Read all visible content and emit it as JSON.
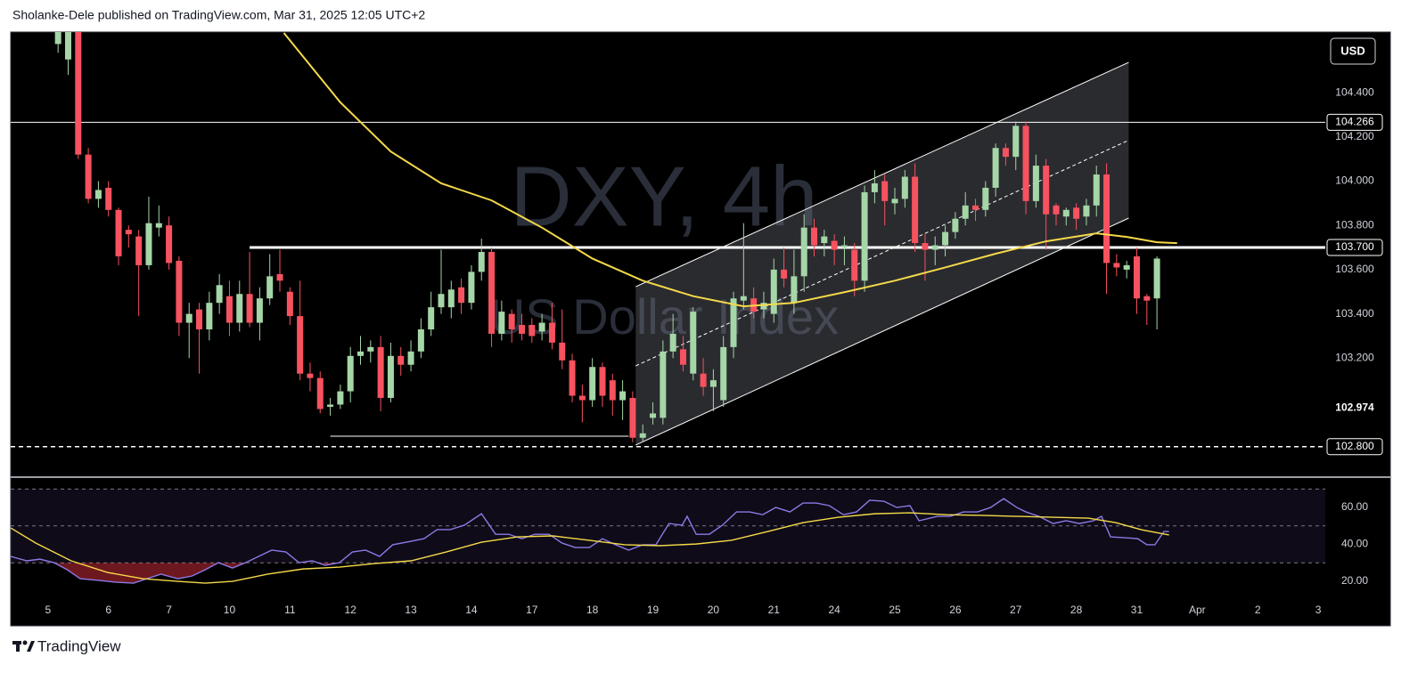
{
  "header": {
    "text": "Sholanke-Dele published on TradingView.com, Mar 31, 2025 12:05 UTC+2"
  },
  "footer": {
    "brand": "TradingView"
  },
  "chart_data": [
    {
      "type": "candlestick",
      "title": "DXY, 4h",
      "subtitle": "US Dollar Index",
      "currency": "USD",
      "colors": {
        "up": "#a5d6a7",
        "down": "#f7525f"
      },
      "xlim": [
        -4.7,
        125.7
      ],
      "xticks": [
        {
          "value": -1,
          "label": "5"
        },
        {
          "value": 5,
          "label": "6"
        },
        {
          "value": 11,
          "label": "7"
        },
        {
          "value": 17,
          "label": "10"
        },
        {
          "value": 23,
          "label": "11"
        },
        {
          "value": 29,
          "label": "12"
        },
        {
          "value": 35,
          "label": "13"
        },
        {
          "value": 41,
          "label": "14"
        },
        {
          "value": 47,
          "label": "17"
        },
        {
          "value": 53,
          "label": "18"
        },
        {
          "value": 59,
          "label": "19"
        },
        {
          "value": 65,
          "label": "20"
        },
        {
          "value": 71,
          "label": "21"
        },
        {
          "value": 77,
          "label": "24"
        },
        {
          "value": 83,
          "label": "25"
        },
        {
          "value": 89,
          "label": "26"
        },
        {
          "value": 95,
          "label": "27"
        },
        {
          "value": 101,
          "label": "28"
        },
        {
          "value": 107,
          "label": "31"
        },
        {
          "value": 113,
          "label": "Apr"
        },
        {
          "value": 119,
          "label": "2"
        },
        {
          "value": 125,
          "label": "3"
        }
      ],
      "ylim": [
        102.666,
        104.674
      ],
      "yticks": [
        {
          "value": 104.4,
          "label": "104.400"
        },
        {
          "value": 104.2,
          "label": "104.200"
        },
        {
          "value": 104,
          "label": "104.000"
        },
        {
          "value": 103.8,
          "label": "103.800"
        },
        {
          "value": 103.6,
          "label": "103.600"
        },
        {
          "value": 103.4,
          "label": "103.400"
        },
        {
          "value": 103.2,
          "label": "103.200"
        }
      ],
      "open": [
        104.62,
        104.55,
        104.68,
        104.12,
        103.92,
        103.97,
        103.87,
        103.78,
        103.75,
        103.62,
        103.79,
        103.8,
        103.64,
        103.36,
        103.42,
        103.33,
        103.45,
        103.48,
        103.36,
        103.49,
        103.36,
        103.47,
        103.58,
        103.5,
        103.39,
        103.13,
        103.11,
        102.98,
        102.99,
        103.05,
        103.21,
        103.23,
        103.25,
        103.02,
        103.21,
        103.17,
        103.23,
        103.33,
        103.43,
        103.43,
        103.52,
        103.45,
        103.59,
        103.68,
        103.31,
        103.4,
        103.35,
        103.35,
        103.32,
        103.36,
        103.27,
        103.19,
        103.03,
        103.01,
        103.16,
        103.1,
        103.01,
        103.02,
        102.84,
        102.93,
        102.93,
        103.23,
        103.24,
        103.13,
        103.13,
        103.07,
        103.01,
        103.25,
        103.46,
        103.47,
        103.42,
        103.4,
        103.6,
        103.45,
        103.57,
        103.79,
        103.72,
        103.73,
        103.7,
        103.69,
        103.55,
        103.95,
        104.0,
        103.9,
        103.92,
        104.02,
        103.72,
        103.69,
        103.71,
        103.77,
        103.83,
        103.89,
        103.87,
        103.97,
        104.15,
        104.11,
        104.25,
        103.91,
        104.07,
        103.89,
        103.84,
        103.88,
        103.84,
        103.89,
        104.03,
        103.63,
        103.6,
        103.66,
        103.48,
        103.47
      ],
      "high": [
        104.7,
        104.7,
        104.7,
        104.15,
        104.0,
        104.0,
        103.88,
        103.8,
        103.78,
        103.93,
        103.89,
        103.84,
        103.66,
        103.45,
        103.45,
        103.5,
        103.58,
        103.55,
        103.55,
        103.68,
        103.52,
        103.67,
        103.69,
        103.52,
        103.55,
        103.18,
        103.14,
        103.02,
        103.08,
        103.25,
        103.3,
        103.28,
        103.3,
        103.27,
        103.25,
        103.28,
        103.38,
        103.5,
        103.69,
        103.55,
        103.56,
        103.62,
        103.74,
        103.7,
        103.46,
        103.42,
        103.4,
        103.38,
        103.4,
        103.45,
        103.42,
        103.22,
        103.08,
        103.2,
        103.18,
        103.13,
        103.1,
        103.05,
        102.9,
        103.0,
        103.28,
        103.4,
        103.3,
        103.43,
        103.2,
        103.15,
        103.3,
        103.5,
        103.81,
        103.52,
        103.5,
        103.65,
        103.7,
        103.69,
        103.85,
        103.83,
        103.78,
        103.76,
        103.75,
        103.72,
        103.98,
        104.05,
        104.03,
        103.97,
        104.05,
        104.08,
        103.76,
        103.75,
        103.8,
        103.86,
        103.95,
        103.92,
        104.0,
        104.17,
        104.17,
        104.27,
        104.27,
        104.12,
        104.1,
        103.9,
        103.88,
        103.9,
        103.92,
        104.07,
        104.08,
        103.67,
        103.64,
        103.7,
        103.49,
        103.66
      ],
      "low": [
        104.58,
        104.48,
        104.1,
        103.9,
        103.88,
        103.84,
        103.62,
        103.7,
        103.39,
        103.6,
        103.75,
        103.6,
        103.3,
        103.2,
        103.13,
        103.28,
        103.4,
        103.3,
        103.32,
        103.34,
        103.28,
        103.44,
        103.5,
        103.35,
        103.1,
        103.05,
        102.95,
        102.94,
        102.97,
        103.0,
        103.17,
        103.18,
        102.96,
        103.0,
        103.12,
        103.14,
        103.2,
        103.3,
        103.4,
        103.38,
        103.4,
        103.42,
        103.55,
        103.25,
        103.28,
        103.27,
        103.28,
        103.27,
        103.28,
        103.24,
        103.15,
        103.0,
        102.91,
        102.98,
        102.98,
        102.94,
        102.92,
        102.82,
        102.82,
        102.9,
        102.9,
        103.2,
        103.14,
        103.1,
        103.03,
        102.96,
        102.98,
        103.2,
        103.42,
        103.38,
        103.38,
        103.36,
        103.52,
        103.4,
        103.5,
        103.66,
        103.66,
        103.62,
        103.62,
        103.48,
        103.5,
        103.9,
        103.8,
        103.85,
        103.88,
        103.68,
        103.55,
        103.62,
        103.66,
        103.74,
        103.8,
        103.82,
        103.84,
        103.93,
        104.07,
        104.05,
        103.85,
        103.88,
        103.69,
        103.8,
        103.8,
        103.78,
        103.8,
        103.84,
        103.49,
        103.57,
        103.56,
        103.4,
        103.35,
        103.33
      ],
      "close": [
        104.7,
        104.68,
        104.12,
        103.92,
        103.96,
        103.87,
        103.66,
        103.76,
        103.62,
        103.81,
        103.81,
        103.63,
        103.36,
        103.4,
        103.33,
        103.45,
        103.53,
        103.36,
        103.49,
        103.36,
        103.47,
        103.57,
        103.55,
        103.39,
        103.13,
        103.11,
        102.97,
        102.99,
        103.05,
        103.21,
        103.23,
        103.25,
        103.02,
        103.21,
        103.17,
        103.23,
        103.33,
        103.43,
        103.49,
        103.51,
        103.45,
        103.59,
        103.68,
        103.31,
        103.41,
        103.33,
        103.31,
        103.3,
        103.36,
        103.27,
        103.19,
        103.03,
        103.01,
        103.16,
        103.03,
        103.01,
        103.05,
        102.84,
        102.86,
        102.95,
        103.23,
        103.31,
        103.17,
        103.41,
        103.07,
        103.1,
        103.25,
        103.47,
        103.48,
        103.41,
        103.45,
        103.6,
        103.56,
        103.57,
        103.79,
        103.71,
        103.75,
        103.69,
        103.71,
        103.55,
        103.95,
        103.99,
        103.91,
        103.92,
        104.02,
        103.72,
        103.69,
        103.71,
        103.77,
        103.83,
        103.89,
        103.87,
        103.97,
        104.15,
        104.11,
        104.25,
        103.91,
        104.07,
        103.85,
        103.85,
        103.87,
        103.83,
        103.89,
        104.03,
        103.63,
        103.61,
        103.62,
        103.47,
        103.46,
        103.65
      ],
      "ma": {
        "color": "#f5d94a",
        "x": [
          22.4,
          28,
          33,
          38,
          43,
          48,
          53,
          58,
          63,
          68,
          73,
          78,
          83,
          88,
          93,
          98,
          103,
          106,
          109,
          111
        ],
        "values": [
          104.67,
          104.356,
          104.134,
          103.99,
          103.913,
          103.79,
          103.65,
          103.55,
          103.48,
          103.434,
          103.45,
          103.498,
          103.55,
          103.61,
          103.672,
          103.728,
          103.764,
          103.748,
          103.724,
          103.72
        ]
      },
      "levels": [
        {
          "value": 104.266,
          "label": "104.266",
          "style": "solid",
          "width": 1,
          "from": -4.7
        },
        {
          "value": 103.7,
          "label": "103.700",
          "style": "solid",
          "width": 3,
          "from": 19.0
        },
        {
          "value": 102.8,
          "label": "102.800",
          "style": "dashed",
          "width": 1.5,
          "from": -4.7
        }
      ],
      "last_price": {
        "value": 102.974,
        "label": "102.974"
      },
      "support": {
        "x": [
          27,
          56.6
        ],
        "value": 102.847
      },
      "channel": {
        "x": [
          57.3,
          106.2
        ],
        "lower": [
          102.807,
          103.833
        ],
        "upper": [
          103.523,
          104.537
        ]
      }
    },
    {
      "type": "line",
      "ylim": [
        9.4,
        74.5
      ],
      "yticks": [
        {
          "value": 60,
          "label": "60.00"
        },
        {
          "value": 40,
          "label": "40.00"
        },
        {
          "value": 20,
          "label": "20.00"
        }
      ],
      "bands": [
        70,
        50,
        30
      ],
      "series": [
        {
          "color": "#8c7ae6",
          "x": [
            -4.7,
            -3.1,
            -1.8,
            -0.4,
            0.9,
            2.2,
            4.0,
            5.8,
            7.5,
            8.8,
            10.2,
            11.9,
            13.3,
            14.6,
            15.9,
            17.3,
            18.6,
            19.9,
            21.2,
            22.6,
            23.9,
            25.2,
            26.5,
            27.9,
            29.2,
            30.5,
            31.9,
            33.2,
            35.0,
            36.3,
            37.6,
            38.9,
            40.3,
            42.0,
            43.4,
            44.7,
            46.0,
            47.3,
            48.7,
            50.0,
            51.3,
            52.7,
            54.0,
            55.3,
            56.6,
            58.0,
            59.3,
            60.6,
            61.9,
            62.4,
            63.3,
            64.6,
            65.9,
            67.3,
            68.6,
            69.9,
            71.2,
            72.6,
            73.9,
            75.2,
            76.5,
            77.9,
            79.2,
            80.5,
            81.9,
            83.2,
            84.5,
            85.4,
            87.2,
            88.5,
            89.8,
            91.2,
            92.5,
            93.8,
            95.1,
            96.0,
            97.3,
            98.7,
            100.0,
            101.3,
            102.7,
            103.5,
            104.4,
            105.8,
            107.1,
            108.0,
            108.8,
            109.7,
            110.2
          ],
          "values": [
            33.5,
            31.1,
            32.0,
            30.1,
            26.3,
            21.4,
            20.5,
            19.5,
            19.0,
            21.4,
            23.9,
            21.4,
            22.9,
            26.3,
            30.1,
            27.2,
            30.1,
            33.5,
            36.9,
            35.9,
            30.1,
            31.1,
            28.7,
            30.1,
            35.9,
            36.9,
            33.5,
            39.8,
            41.7,
            43.1,
            48.0,
            48.0,
            50.4,
            56.6,
            45.5,
            45.5,
            43.1,
            45.5,
            45.5,
            40.7,
            38.3,
            38.3,
            43.1,
            39.8,
            36.9,
            39.8,
            39.8,
            51.3,
            50.4,
            55.2,
            45.5,
            45.5,
            50.4,
            57.6,
            57.6,
            56.1,
            60.0,
            57.6,
            62.4,
            62.4,
            61.0,
            56.1,
            57.6,
            63.9,
            63.4,
            60.0,
            61.0,
            52.8,
            55.2,
            55.2,
            57.6,
            57.6,
            60.0,
            64.8,
            60.0,
            57.6,
            55.2,
            51.3,
            52.8,
            51.3,
            52.8,
            55.2,
            44.1,
            43.6,
            43.1,
            39.8,
            39.8,
            47.0,
            47.0
          ]
        },
        {
          "color": "#f5d94a",
          "x": [
            -4.7,
            -2.2,
            1.3,
            4.9,
            8.4,
            11.9,
            14.6,
            17.3,
            20.8,
            24.3,
            27.9,
            31.4,
            35.0,
            38.5,
            42.0,
            45.6,
            49.1,
            52.7,
            56.2,
            59.7,
            63.3,
            66.8,
            70.4,
            73.9,
            77.4,
            81.0,
            84.5,
            88.1,
            91.6,
            95.1,
            98.7,
            102.2,
            104.9,
            107.5,
            110.2
          ],
          "values": [
            48.9,
            40.7,
            31.1,
            24.8,
            21.4,
            20.0,
            19.0,
            20.0,
            23.9,
            26.7,
            27.7,
            29.6,
            31.1,
            35.9,
            41.2,
            44.1,
            44.6,
            42.2,
            39.8,
            39.3,
            40.2,
            42.2,
            47.0,
            51.8,
            54.7,
            56.6,
            57.1,
            56.1,
            55.7,
            55.2,
            54.7,
            54.2,
            51.8,
            47.9,
            45.1
          ]
        }
      ]
    }
  ]
}
